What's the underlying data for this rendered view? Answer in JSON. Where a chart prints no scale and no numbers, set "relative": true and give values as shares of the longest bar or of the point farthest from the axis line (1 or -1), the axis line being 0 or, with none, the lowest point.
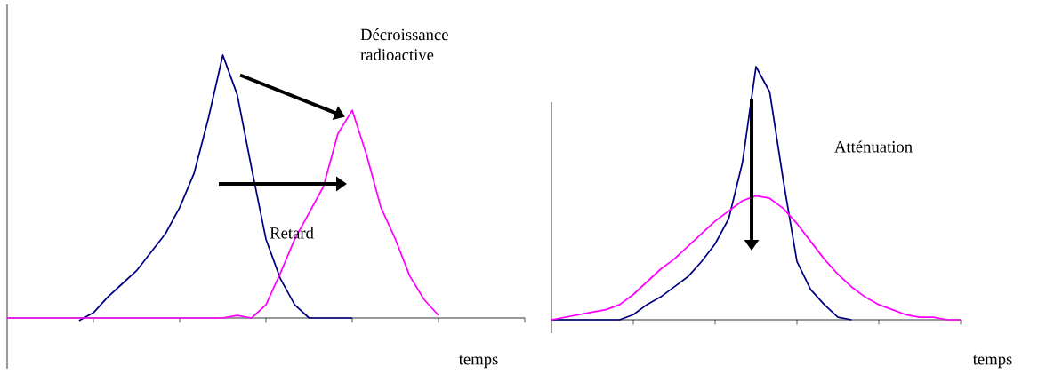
{
  "chart_data": [
    {
      "type": "line",
      "relative": true,
      "xlabel": "temps",
      "categories": [
        null,
        null,
        null,
        null,
        null,
        null,
        null,
        null,
        null,
        null,
        null,
        null,
        null,
        null,
        null,
        null,
        null,
        null,
        null,
        null,
        null,
        null,
        null,
        null,
        null,
        null,
        null,
        null,
        null,
        null,
        null,
        null,
        null,
        null,
        null,
        null,
        null
      ],
      "series": [
        {
          "color": "#000080",
          "values": [
            null,
            null,
            null,
            null,
            null,
            -0.01,
            0.02,
            0.08,
            0.13,
            0.18,
            0.25,
            0.32,
            0.42,
            0.55,
            0.76,
            1,
            0.85,
            0.57,
            0.3,
            0.15,
            0.05,
            0,
            0,
            0,
            0,
            null,
            null,
            null,
            null,
            null,
            null,
            null,
            null,
            null,
            null,
            null,
            null
          ]
        },
        {
          "color": "#ff00ff",
          "values": [
            0,
            0,
            0,
            0,
            0,
            0,
            0,
            0,
            0,
            0,
            0,
            0,
            0,
            0,
            0,
            0,
            0.01,
            0,
            0.05,
            0.17,
            0.3,
            0.4,
            0.5,
            0.7,
            0.79,
            0.62,
            0.42,
            0.3,
            0.16,
            0.07,
            0.01,
            null,
            null,
            null,
            null,
            null,
            null
          ]
        }
      ],
      "annotations": [
        "Décroissance radioactive",
        "Retard"
      ]
    },
    {
      "type": "line",
      "relative": true,
      "xlabel": "temps",
      "categories": [
        null,
        null,
        null,
        null,
        null,
        null,
        null,
        null,
        null,
        null,
        null,
        null,
        null,
        null,
        null,
        null,
        null,
        null,
        null,
        null,
        null,
        null,
        null,
        null,
        null,
        null,
        null,
        null,
        null,
        null,
        null
      ],
      "series": [
        {
          "color": "#000080",
          "values": [
            0,
            0,
            0,
            0,
            0,
            0,
            0.02,
            0.06,
            0.09,
            0.13,
            0.17,
            0.23,
            0.3,
            0.4,
            0.62,
            1,
            0.9,
            0.55,
            0.23,
            0.12,
            0.06,
            0.01,
            0,
            null,
            null,
            null,
            null,
            null,
            null,
            null,
            null
          ]
        },
        {
          "color": "#ff00ff",
          "values": [
            0,
            0.01,
            0.02,
            0.03,
            0.04,
            0.06,
            0.1,
            0.15,
            0.2,
            0.24,
            0.29,
            0.34,
            0.39,
            0.43,
            0.47,
            0.49,
            0.48,
            0.44,
            0.38,
            0.31,
            0.24,
            0.18,
            0.13,
            0.09,
            0.06,
            0.04,
            0.02,
            0.01,
            0.01,
            0,
            0
          ]
        }
      ],
      "annotations": [
        "Atténuation"
      ]
    }
  ]
}
